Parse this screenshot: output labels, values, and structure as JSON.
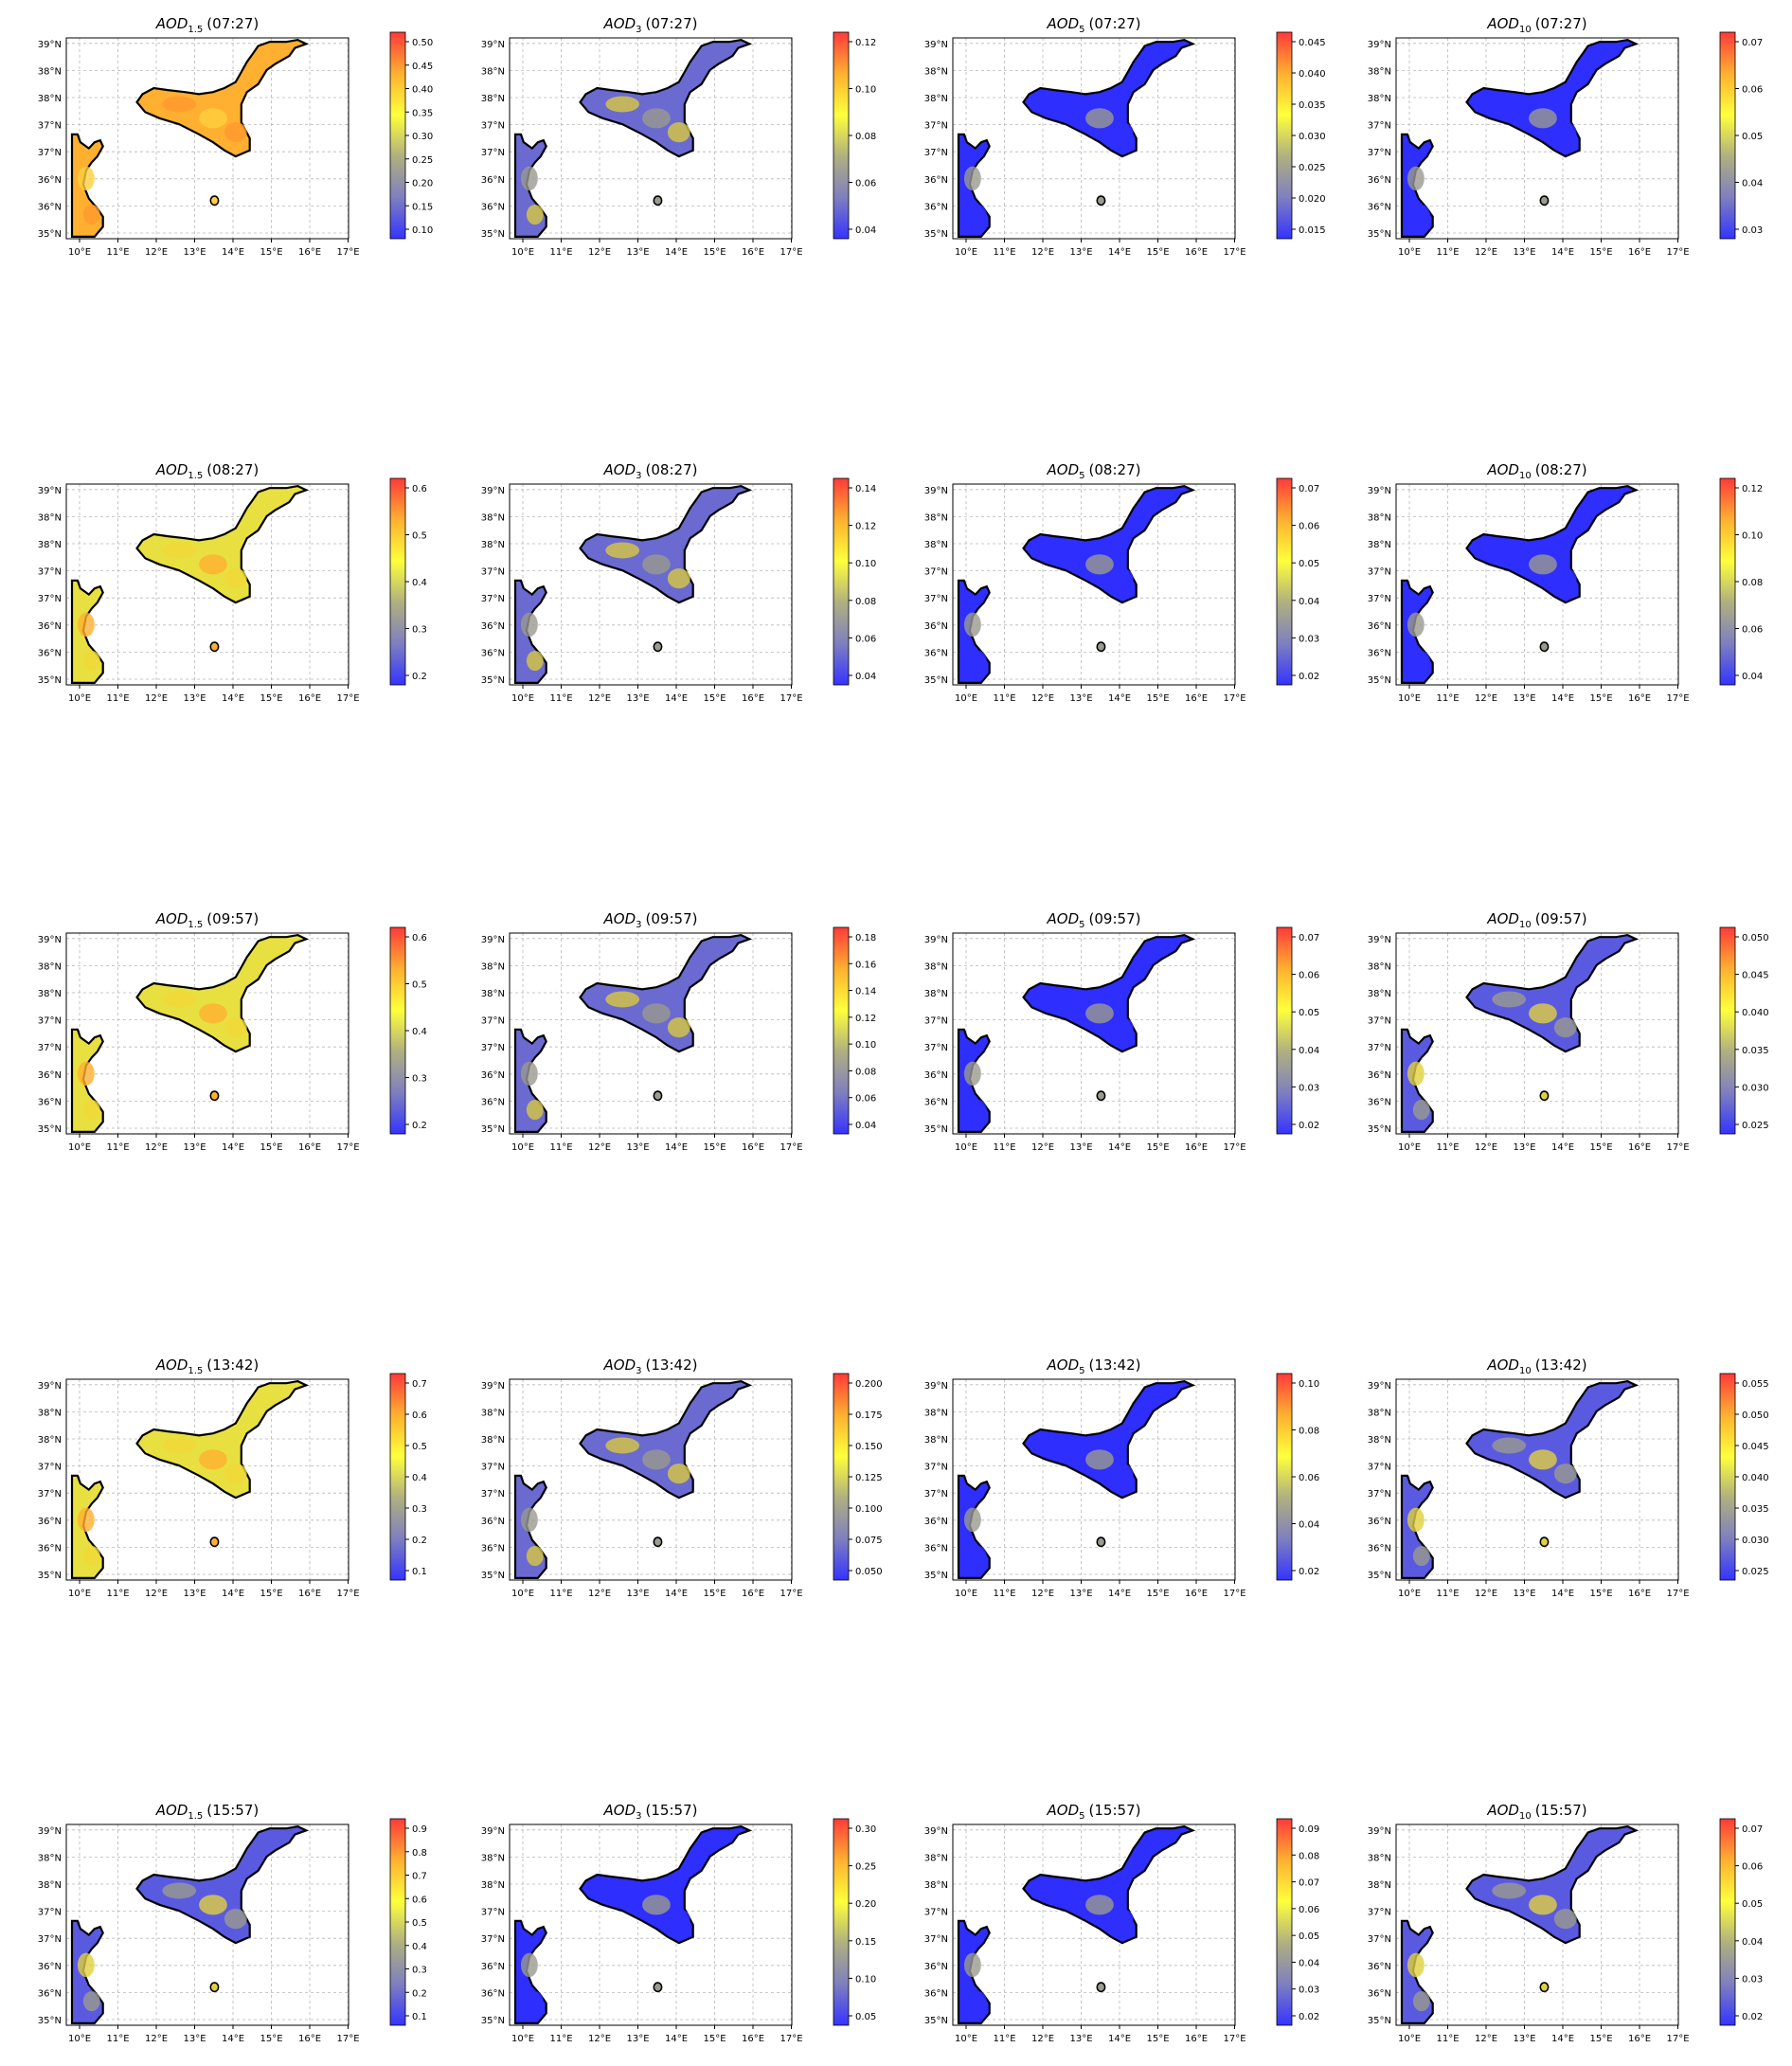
{
  "lon_ticks": [
    "10°E",
    "11°E",
    "12°E",
    "13°E",
    "14°E",
    "15°E",
    "16°E",
    "17°E"
  ],
  "lat_ticks": [
    "35°N",
    "36°N",
    "36°N",
    "37°N",
    "37°N",
    "38°N",
    "38°N",
    "39°N"
  ],
  "colormap": [
    "#3434ff",
    "#7f7fc0",
    "#b0b080",
    "#ffff3c",
    "#ffb030",
    "#ff3a3a"
  ],
  "panels": [
    [
      {
        "title": "AOD",
        "sub": "1.5",
        "time": "(07:27)",
        "ticks": [
          "0.50",
          "0.45",
          "0.40",
          "0.35",
          "0.30",
          "0.25",
          "0.20",
          "0.15",
          "0.10"
        ],
        "fill": "orange"
      },
      {
        "title": "AOD",
        "sub": "3",
        "time": "(07:27)",
        "ticks": [
          "0.12",
          "0.10",
          "0.08",
          "0.06",
          "0.04"
        ],
        "fill": "mixed"
      },
      {
        "title": "AOD",
        "sub": "5",
        "time": "(07:27)",
        "ticks": [
          "0.045",
          "0.040",
          "0.035",
          "0.030",
          "0.025",
          "0.020",
          "0.015"
        ],
        "fill": "blue"
      },
      {
        "title": "AOD",
        "sub": "10",
        "time": "(07:27)",
        "ticks": [
          "0.07",
          "0.06",
          "0.05",
          "0.04",
          "0.03"
        ],
        "fill": "blue"
      }
    ],
    [
      {
        "title": "AOD",
        "sub": "1.5",
        "time": "(08:27)",
        "ticks": [
          "0.6",
          "0.5",
          "0.4",
          "0.3",
          "0.2"
        ],
        "fill": "yellow"
      },
      {
        "title": "AOD",
        "sub": "3",
        "time": "(08:27)",
        "ticks": [
          "0.14",
          "0.12",
          "0.10",
          "0.08",
          "0.06",
          "0.04"
        ],
        "fill": "mixed"
      },
      {
        "title": "AOD",
        "sub": "5",
        "time": "(08:27)",
        "ticks": [
          "0.07",
          "0.06",
          "0.05",
          "0.04",
          "0.03",
          "0.02"
        ],
        "fill": "blue"
      },
      {
        "title": "AOD",
        "sub": "10",
        "time": "(08:27)",
        "ticks": [
          "0.12",
          "0.10",
          "0.08",
          "0.06",
          "0.04"
        ],
        "fill": "blue"
      }
    ],
    [
      {
        "title": "AOD",
        "sub": "1.5",
        "time": "(09:57)",
        "ticks": [
          "0.6",
          "0.5",
          "0.4",
          "0.3",
          "0.2"
        ],
        "fill": "yellow"
      },
      {
        "title": "AOD",
        "sub": "3",
        "time": "(09:57)",
        "ticks": [
          "0.18",
          "0.16",
          "0.14",
          "0.12",
          "0.10",
          "0.08",
          "0.06",
          "0.04"
        ],
        "fill": "mixed"
      },
      {
        "title": "AOD",
        "sub": "5",
        "time": "(09:57)",
        "ticks": [
          "0.07",
          "0.06",
          "0.05",
          "0.04",
          "0.03",
          "0.02"
        ],
        "fill": "blue"
      },
      {
        "title": "AOD",
        "sub": "10",
        "time": "(09:57)",
        "ticks": [
          "0.050",
          "0.045",
          "0.040",
          "0.035",
          "0.030",
          "0.025"
        ],
        "fill": "grey"
      }
    ],
    [
      {
        "title": "AOD",
        "sub": "1.5",
        "time": "(13:42)",
        "ticks": [
          "0.7",
          "0.6",
          "0.5",
          "0.4",
          "0.3",
          "0.2",
          "0.1"
        ],
        "fill": "yellow"
      },
      {
        "title": "AOD",
        "sub": "3",
        "time": "(13:42)",
        "ticks": [
          "0.200",
          "0.175",
          "0.150",
          "0.125",
          "0.100",
          "0.075",
          "0.050"
        ],
        "fill": "mixed"
      },
      {
        "title": "AOD",
        "sub": "5",
        "time": "(13:42)",
        "ticks": [
          "0.10",
          "0.08",
          "0.06",
          "0.04",
          "0.02"
        ],
        "fill": "blue"
      },
      {
        "title": "AOD",
        "sub": "10",
        "time": "(13:42)",
        "ticks": [
          "0.055",
          "0.050",
          "0.045",
          "0.040",
          "0.035",
          "0.030",
          "0.025"
        ],
        "fill": "grey"
      }
    ],
    [
      {
        "title": "AOD",
        "sub": "1.5",
        "time": "(15:57)",
        "ticks": [
          "0.9",
          "0.8",
          "0.7",
          "0.6",
          "0.5",
          "0.4",
          "0.3",
          "0.2",
          "0.1"
        ],
        "fill": "grey"
      },
      {
        "title": "AOD",
        "sub": "3",
        "time": "(15:57)",
        "ticks": [
          "0.30",
          "0.25",
          "0.20",
          "0.15",
          "0.10",
          "0.05"
        ],
        "fill": "blue"
      },
      {
        "title": "AOD",
        "sub": "5",
        "time": "(15:57)",
        "ticks": [
          "0.09",
          "0.08",
          "0.07",
          "0.06",
          "0.05",
          "0.04",
          "0.03",
          "0.02"
        ],
        "fill": "blue"
      },
      {
        "title": "AOD",
        "sub": "10",
        "time": "(15:57)",
        "ticks": [
          "0.07",
          "0.06",
          "0.05",
          "0.04",
          "0.03",
          "0.02"
        ],
        "fill": "grey"
      }
    ]
  ],
  "chart_data": {
    "type": "heatmap",
    "grid_layout": "5 rows x 4 columns of map panels",
    "x_ticks": [
      "10°E",
      "11°E",
      "12°E",
      "13°E",
      "14°E",
      "15°E",
      "16°E",
      "17°E"
    ],
    "y_ticks": [
      "35°N",
      "36°N",
      "36°N",
      "37°N",
      "37°N",
      "38°N",
      "38°N",
      "39°N"
    ],
    "grid": true,
    "colorbar_placement": "right of each panel"
  }
}
